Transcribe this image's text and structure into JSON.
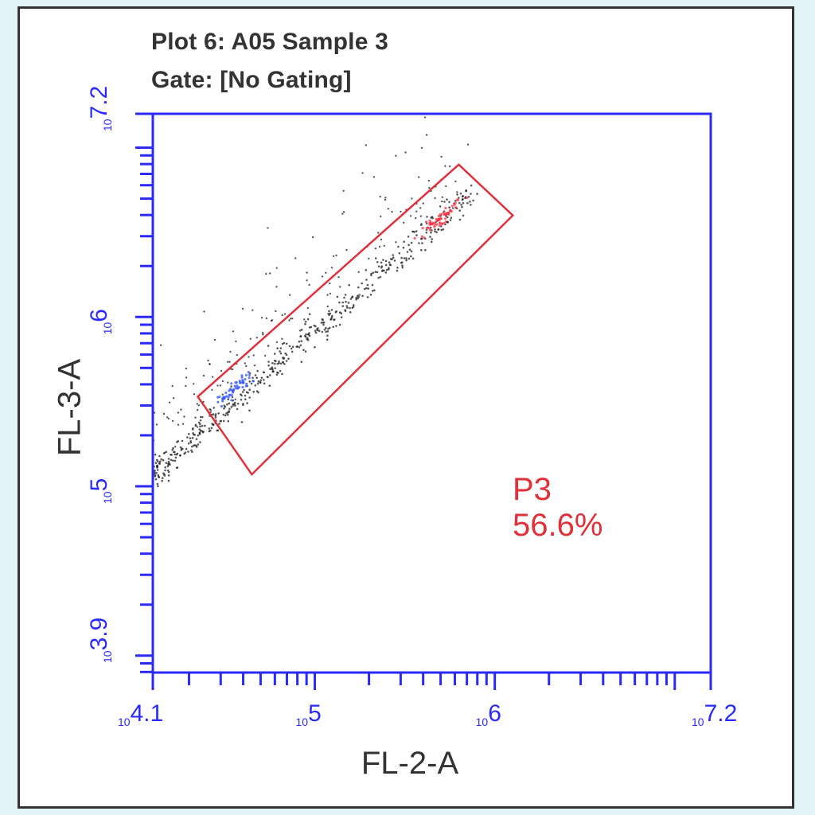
{
  "plot": {
    "title": "Plot 6: A05 Sample 3",
    "gate_label": "Gate:  [No Gating]"
  },
  "colors": {
    "axis": "#2a2aff",
    "gate": "#e0303a",
    "events": "#222222",
    "highlight_low": "#3355ff",
    "highlight_high": "#ff3344",
    "background": "#e3f1f8"
  },
  "chart_data": {
    "type": "scatter",
    "xlabel": "FL-2-A",
    "ylabel": "FL-3-A",
    "xscale": "log",
    "yscale": "log",
    "xlim_log10": [
      4.1,
      7.2
    ],
    "ylim_log10": [
      3.9,
      7.2
    ],
    "x_tick_labels": [
      {
        "exp": "4.1",
        "value_log10": 4.1
      },
      {
        "exp": "5",
        "value_log10": 5
      },
      {
        "exp": "6",
        "value_log10": 6
      },
      {
        "exp": "7.2",
        "value_log10": 7.2
      }
    ],
    "y_tick_labels": [
      {
        "exp": "3.9",
        "value_log10": 3.9
      },
      {
        "exp": "5",
        "value_log10": 5
      },
      {
        "exp": "6",
        "value_log10": 6
      },
      {
        "exp": "7.2",
        "value_log10": 7.2
      }
    ],
    "grid": false,
    "population": {
      "description": "events along diagonal line",
      "from_log10": [
        4.1,
        5.07
      ],
      "to_log10": [
        5.88,
        6.74
      ],
      "high_density_clusters": [
        {
          "color": "blue",
          "center_log10": [
            4.55,
            5.57
          ]
        },
        {
          "color": "red",
          "center_log10": [
            5.7,
            6.58
          ]
        }
      ]
    },
    "gates": [
      {
        "name": "P3",
        "percent": "56.6%",
        "polygon_log10": [
          [
            4.35,
            5.53
          ],
          [
            4.65,
            5.07
          ],
          [
            6.1,
            6.6
          ],
          [
            5.8,
            6.9
          ]
        ]
      }
    ]
  }
}
